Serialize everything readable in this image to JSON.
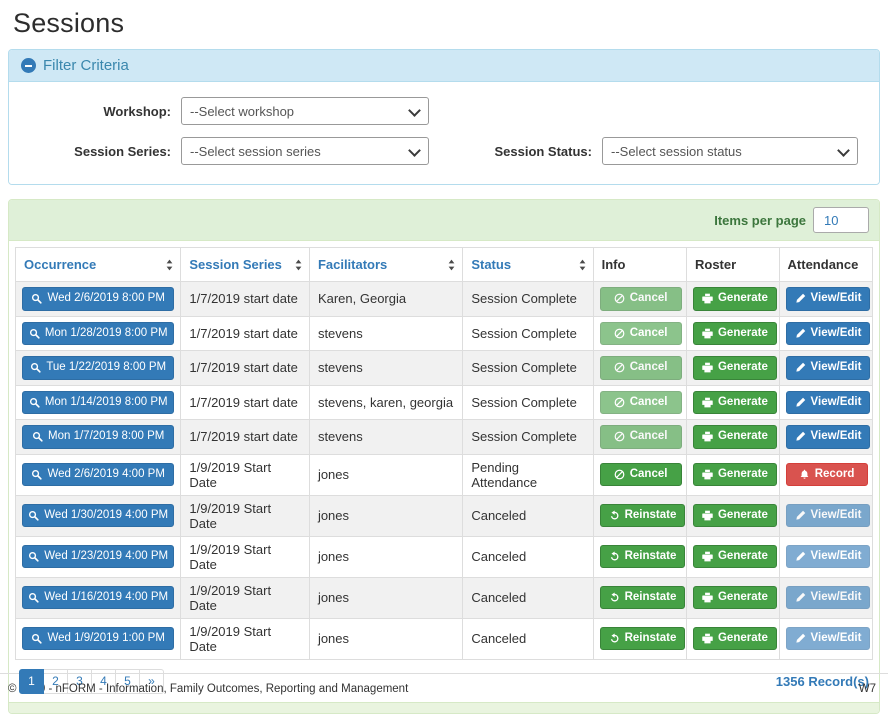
{
  "page": {
    "title": "Sessions"
  },
  "filter": {
    "title": "Filter Criteria",
    "fields": [
      {
        "label": "Workshop:",
        "selected": "--Select workshop"
      },
      {
        "label": "Session Series:",
        "selected": "--Select session series"
      },
      {
        "label": "Session Status:",
        "selected": "--Select session status"
      }
    ]
  },
  "grid": {
    "items_per_page": {
      "label": "Items per page",
      "selected": "10"
    },
    "columns": [
      {
        "label": "Occurrence",
        "sortable": true
      },
      {
        "label": "Session Series",
        "sortable": true
      },
      {
        "label": "Facilitators",
        "sortable": true
      },
      {
        "label": "Status",
        "sortable": true
      },
      {
        "label": "Info",
        "sortable": false
      },
      {
        "label": "Roster",
        "sortable": false
      },
      {
        "label": "Attendance",
        "sortable": false
      }
    ],
    "rows": [
      {
        "occurrence": {
          "label": "Wed 2/6/2019 8:00 PM",
          "icon": "search-icon"
        },
        "session_series": "1/7/2019 start date",
        "facilitators": "Karen, Georgia",
        "status": "Session Complete",
        "info": {
          "label": "Cancel",
          "icon": "ban-icon",
          "style": "success",
          "enabled": false
        },
        "roster": {
          "label": "Generate",
          "icon": "printer-icon",
          "style": "success",
          "enabled": true
        },
        "attendance": {
          "label": "View/Edit",
          "icon": "pencil-icon",
          "style": "primary",
          "enabled": true
        }
      },
      {
        "occurrence": {
          "label": "Mon 1/28/2019 8:00 PM",
          "icon": "search-icon"
        },
        "session_series": "1/7/2019 start date",
        "facilitators": "stevens",
        "status": "Session Complete",
        "info": {
          "label": "Cancel",
          "icon": "ban-icon",
          "style": "success",
          "enabled": false
        },
        "roster": {
          "label": "Generate",
          "icon": "printer-icon",
          "style": "success",
          "enabled": true
        },
        "attendance": {
          "label": "View/Edit",
          "icon": "pencil-icon",
          "style": "primary",
          "enabled": true
        }
      },
      {
        "occurrence": {
          "label": "Tue 1/22/2019 8:00 PM",
          "icon": "search-icon"
        },
        "session_series": "1/7/2019 start date",
        "facilitators": "stevens",
        "status": "Session Complete",
        "info": {
          "label": "Cancel",
          "icon": "ban-icon",
          "style": "success",
          "enabled": false
        },
        "roster": {
          "label": "Generate",
          "icon": "printer-icon",
          "style": "success",
          "enabled": true
        },
        "attendance": {
          "label": "View/Edit",
          "icon": "pencil-icon",
          "style": "primary",
          "enabled": true
        }
      },
      {
        "occurrence": {
          "label": "Mon 1/14/2019 8:00 PM",
          "icon": "search-icon"
        },
        "session_series": "1/7/2019 start date",
        "facilitators": "stevens, karen, georgia",
        "status": "Session Complete",
        "info": {
          "label": "Cancel",
          "icon": "ban-icon",
          "style": "success",
          "enabled": false
        },
        "roster": {
          "label": "Generate",
          "icon": "printer-icon",
          "style": "success",
          "enabled": true
        },
        "attendance": {
          "label": "View/Edit",
          "icon": "pencil-icon",
          "style": "primary",
          "enabled": true
        }
      },
      {
        "occurrence": {
          "label": "Mon 1/7/2019 8:00 PM",
          "icon": "search-icon"
        },
        "session_series": "1/7/2019 start date",
        "facilitators": "stevens",
        "status": "Session Complete",
        "info": {
          "label": "Cancel",
          "icon": "ban-icon",
          "style": "success",
          "enabled": false
        },
        "roster": {
          "label": "Generate",
          "icon": "printer-icon",
          "style": "success",
          "enabled": true
        },
        "attendance": {
          "label": "View/Edit",
          "icon": "pencil-icon",
          "style": "primary",
          "enabled": true
        }
      },
      {
        "occurrence": {
          "label": "Wed 2/6/2019 4:00 PM",
          "icon": "search-icon"
        },
        "session_series": "1/9/2019 Start Date",
        "facilitators": "jones",
        "status": "Pending Attendance",
        "info": {
          "label": "Cancel",
          "icon": "ban-icon",
          "style": "success",
          "enabled": true
        },
        "roster": {
          "label": "Generate",
          "icon": "printer-icon",
          "style": "success",
          "enabled": true
        },
        "attendance": {
          "label": "Record",
          "icon": "bell-icon",
          "style": "danger",
          "enabled": true
        }
      },
      {
        "occurrence": {
          "label": "Wed 1/30/2019 4:00 PM",
          "icon": "search-icon"
        },
        "session_series": "1/9/2019 Start Date",
        "facilitators": "jones",
        "status": "Canceled",
        "info": {
          "label": "Reinstate",
          "icon": "undo-icon",
          "style": "success",
          "enabled": true
        },
        "roster": {
          "label": "Generate",
          "icon": "printer-icon",
          "style": "success",
          "enabled": true
        },
        "attendance": {
          "label": "View/Edit",
          "icon": "pencil-icon",
          "style": "primary",
          "enabled": false
        }
      },
      {
        "occurrence": {
          "label": "Wed 1/23/2019 4:00 PM",
          "icon": "search-icon"
        },
        "session_series": "1/9/2019 Start Date",
        "facilitators": "jones",
        "status": "Canceled",
        "info": {
          "label": "Reinstate",
          "icon": "undo-icon",
          "style": "success",
          "enabled": true
        },
        "roster": {
          "label": "Generate",
          "icon": "printer-icon",
          "style": "success",
          "enabled": true
        },
        "attendance": {
          "label": "View/Edit",
          "icon": "pencil-icon",
          "style": "primary",
          "enabled": false
        }
      },
      {
        "occurrence": {
          "label": "Wed 1/16/2019 4:00 PM",
          "icon": "search-icon"
        },
        "session_series": "1/9/2019 Start Date",
        "facilitators": "jones",
        "status": "Canceled",
        "info": {
          "label": "Reinstate",
          "icon": "undo-icon",
          "style": "success",
          "enabled": true
        },
        "roster": {
          "label": "Generate",
          "icon": "printer-icon",
          "style": "success",
          "enabled": true
        },
        "attendance": {
          "label": "View/Edit",
          "icon": "pencil-icon",
          "style": "primary",
          "enabled": false
        }
      },
      {
        "occurrence": {
          "label": "Wed 1/9/2019 1:00 PM",
          "icon": "search-icon"
        },
        "session_series": "1/9/2019 Start Date",
        "facilitators": "jones",
        "status": "Canceled",
        "info": {
          "label": "Reinstate",
          "icon": "undo-icon",
          "style": "success",
          "enabled": true
        },
        "roster": {
          "label": "Generate",
          "icon": "printer-icon",
          "style": "success",
          "enabled": true
        },
        "attendance": {
          "label": "View/Edit",
          "icon": "pencil-icon",
          "style": "primary",
          "enabled": false
        }
      }
    ],
    "pagination": [
      {
        "label": "1",
        "active": true
      },
      {
        "label": "2",
        "active": false
      },
      {
        "label": "3",
        "active": false
      },
      {
        "label": "4",
        "active": false
      },
      {
        "label": "5",
        "active": false
      },
      {
        "label": "»",
        "active": false
      }
    ],
    "record_count": "1356 Record(s)"
  },
  "footer": {
    "copyright": "© 2020 - nFORM - Information, Family Outcomes, Reporting and Management",
    "environment": "W7"
  }
}
